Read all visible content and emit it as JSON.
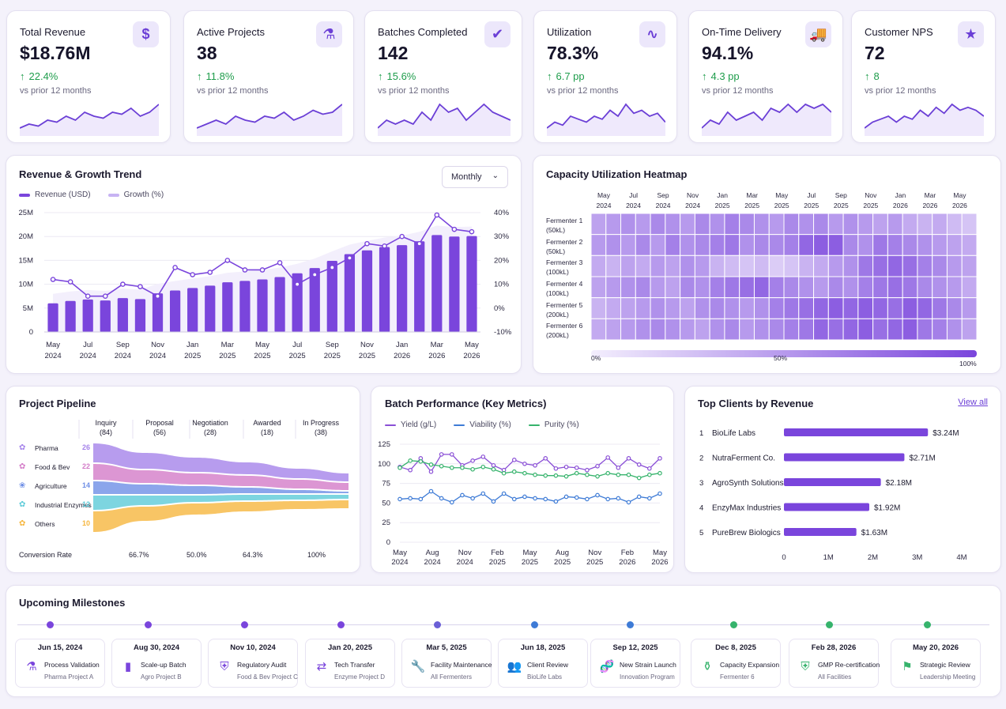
{
  "colors": {
    "accent": "#7a45dc",
    "accent_light": "#c7b3f3",
    "positive": "#1f9d4c",
    "teal": "#2ab8c9",
    "blue": "#3e7bd6",
    "green": "#36b36c",
    "orange": "#f5b340",
    "pink": "#d675c8"
  },
  "kpis": [
    {
      "title": "Total Revenue",
      "value": "$18.76M",
      "arrow": "↑",
      "delta": "22.4%",
      "sub": "vs prior 12 months",
      "icon": "dollar-icon",
      "glyph": "$",
      "trend": [
        3,
        4,
        3.5,
        5,
        4.5,
        6,
        5,
        7,
        6,
        5.5,
        7,
        6.5,
        8,
        6,
        7,
        9
      ]
    },
    {
      "title": "Active Projects",
      "value": "38",
      "arrow": "↑",
      "delta": "11.8%",
      "sub": "vs prior 12 months",
      "icon": "flask-icon",
      "glyph": "⚗",
      "trend": [
        3,
        4,
        5,
        4,
        6,
        5,
        4.5,
        6,
        5.5,
        7,
        5,
        6,
        7.5,
        6.5,
        7,
        9
      ]
    },
    {
      "title": "Batches Completed",
      "value": "142",
      "arrow": "↑",
      "delta": "15.6%",
      "sub": "vs prior 12 months",
      "icon": "checkbox-icon",
      "glyph": "✔",
      "trend": [
        4,
        5,
        4.5,
        5,
        4.5,
        6,
        5,
        7,
        6,
        6.5,
        5,
        6,
        7,
        6,
        5.5,
        5
      ]
    },
    {
      "title": "Utilization",
      "value": "78.3%",
      "arrow": "↑",
      "delta": "6.7 pp",
      "sub": "vs prior 12 months",
      "icon": "pulse-icon",
      "glyph": "∿",
      "trend": [
        4,
        5,
        4.5,
        6,
        5.5,
        5,
        6,
        5.5,
        7,
        6,
        8,
        6.5,
        7,
        6,
        6.5,
        5
      ]
    },
    {
      "title": "On-Time Delivery",
      "value": "94.1%",
      "arrow": "↑",
      "delta": "4.3 pp",
      "sub": "vs prior 12 months",
      "icon": "truck-icon",
      "glyph": "🚚",
      "trend": [
        4,
        5,
        4.5,
        6,
        5,
        5.5,
        6,
        5,
        6.5,
        6,
        7,
        6,
        7,
        6.5,
        7,
        6
      ]
    },
    {
      "title": "Customer NPS",
      "value": "72",
      "arrow": "↑",
      "delta": "8",
      "sub": "vs prior 12 months",
      "icon": "star-icon",
      "glyph": "★",
      "trend": [
        3,
        4,
        4.5,
        5,
        4,
        5,
        4.5,
        6,
        5,
        6.5,
        5.5,
        7,
        6,
        6.5,
        6,
        5
      ]
    }
  ],
  "revenue_trend": {
    "title": "Revenue & Growth Trend",
    "select_value": "Monthly",
    "legend": [
      "Revenue (USD)",
      "Growth (%)"
    ]
  },
  "heatmap": {
    "title": "Capacity Utilization Heatmap",
    "col_labels": [
      [
        "May",
        "2024"
      ],
      [
        "Jul",
        "2024"
      ],
      [
        "Sep",
        "2024"
      ],
      [
        "Nov",
        "2024"
      ],
      [
        "Jan",
        "2025"
      ],
      [
        "Mar",
        "2025"
      ],
      [
        "May",
        "2025"
      ],
      [
        "Jul",
        "2025"
      ],
      [
        "Sep",
        "2025"
      ],
      [
        "Nov",
        "2025"
      ],
      [
        "Jan",
        "2026"
      ],
      [
        "Mar",
        "2026"
      ],
      [
        "May",
        "2026"
      ]
    ],
    "row_labels": [
      [
        "Fermenter 1",
        "(50kL)"
      ],
      [
        "Fermenter 2",
        "(50kL)"
      ],
      [
        "Fermenter 3",
        "(100kL)"
      ],
      [
        "Fermenter 4",
        "(100kL)"
      ],
      [
        "Fermenter 5",
        "(200kL)"
      ],
      [
        "Fermenter 6",
        "(200kL)"
      ]
    ],
    "scale_labels": [
      "0%",
      "50%",
      "100%"
    ],
    "values": [
      [
        0.45,
        0.5,
        0.55,
        0.5,
        0.6,
        0.55,
        0.5,
        0.6,
        0.55,
        0.65,
        0.6,
        0.55,
        0.5,
        0.6,
        0.55,
        0.6,
        0.5,
        0.55,
        0.5,
        0.45,
        0.5,
        0.4,
        0.35,
        0.4,
        0.3,
        0.25
      ],
      [
        0.5,
        0.55,
        0.5,
        0.6,
        0.5,
        0.65,
        0.55,
        0.6,
        0.65,
        0.7,
        0.55,
        0.6,
        0.6,
        0.65,
        0.8,
        0.85,
        0.85,
        0.6,
        0.55,
        0.7,
        0.65,
        0.6,
        0.55,
        0.5,
        0.45,
        0.4
      ],
      [
        0.4,
        0.35,
        0.45,
        0.4,
        0.5,
        0.45,
        0.55,
        0.5,
        0.35,
        0.3,
        0.25,
        0.3,
        0.2,
        0.25,
        0.35,
        0.4,
        0.5,
        0.55,
        0.7,
        0.75,
        0.8,
        0.75,
        0.65,
        0.6,
        0.5,
        0.45
      ],
      [
        0.45,
        0.5,
        0.55,
        0.6,
        0.5,
        0.45,
        0.6,
        0.55,
        0.65,
        0.7,
        0.75,
        0.8,
        0.65,
        0.6,
        0.55,
        0.5,
        0.6,
        0.55,
        0.65,
        0.7,
        0.75,
        0.7,
        0.6,
        0.55,
        0.5,
        0.4
      ],
      [
        0.35,
        0.4,
        0.45,
        0.5,
        0.55,
        0.5,
        0.45,
        0.55,
        0.6,
        0.55,
        0.5,
        0.55,
        0.65,
        0.7,
        0.75,
        0.8,
        0.85,
        0.8,
        0.85,
        0.8,
        0.75,
        0.85,
        0.8,
        0.7,
        0.6,
        0.5
      ],
      [
        0.4,
        0.45,
        0.5,
        0.55,
        0.6,
        0.55,
        0.5,
        0.45,
        0.55,
        0.6,
        0.5,
        0.55,
        0.6,
        0.65,
        0.7,
        0.8,
        0.75,
        0.8,
        0.85,
        0.75,
        0.8,
        0.85,
        0.7,
        0.65,
        0.55,
        0.45
      ]
    ]
  },
  "pipeline": {
    "title": "Project Pipeline",
    "stages": [
      [
        "Inquiry",
        "(84)"
      ],
      [
        "Proposal",
        "(56)"
      ],
      [
        "Negotiation",
        "(28)"
      ],
      [
        "Awarded",
        "(18)"
      ],
      [
        "In Progress",
        "(38)"
      ]
    ],
    "segments": [
      {
        "label": "Pharma",
        "count": "26",
        "color": "#a583ea",
        "icon": "pharma-icon",
        "glyph": "✿"
      },
      {
        "label": "Food & Bev",
        "count": "22",
        "color": "#d37cc8",
        "icon": "food-icon",
        "glyph": "✿"
      },
      {
        "label": "Agriculture",
        "count": "14",
        "color": "#6e8ee6",
        "icon": "leaf-icon",
        "glyph": "❀"
      },
      {
        "label": "Industrial Enzymes",
        "count": "12",
        "color": "#5ccad8",
        "icon": "enzyme-icon",
        "glyph": "✿"
      },
      {
        "label": "Others",
        "count": "10",
        "color": "#f6b63e",
        "icon": "others-icon",
        "glyph": "✿"
      }
    ],
    "conversion_label": "Conversion Rate",
    "conversion_values": [
      "66.7%",
      "50.0%",
      "64.3%",
      "100%"
    ]
  },
  "batch": {
    "title": "Batch Performance (Key Metrics)",
    "legend": [
      "Yield (g/L)",
      "Viability (%)",
      "Purity (%)"
    ]
  },
  "clients": {
    "title": "Top Clients by Revenue",
    "view_all": "View all",
    "rows": [
      {
        "rank": "1",
        "name": "BioLife Labs",
        "value": "$3.24M"
      },
      {
        "rank": "2",
        "name": "NutraFerment Co.",
        "value": "$2.71M"
      },
      {
        "rank": "3",
        "name": "AgroSynth Solutions",
        "value": "$2.18M"
      },
      {
        "rank": "4",
        "name": "EnzyMax Industries",
        "value": "$1.92M"
      },
      {
        "rank": "5",
        "name": "PureBrew Biologics",
        "value": "$1.63M"
      }
    ]
  },
  "milestones": {
    "title": "Upcoming Milestones",
    "items": [
      {
        "date": "Jun 15, 2024",
        "title": "Process Validation",
        "sub": "Pharma Project A",
        "icon": "flask-icon",
        "glyph": "⚗",
        "color": "#7a45dc"
      },
      {
        "date": "Aug 30, 2024",
        "title": "Scale-up Batch",
        "sub": "Agro Project B",
        "icon": "bar-chart-icon",
        "glyph": "▮",
        "color": "#7a45dc"
      },
      {
        "date": "Nov 10, 2024",
        "title": "Regulatory Audit",
        "sub": "Food & Bev Project C",
        "icon": "shield-icon",
        "glyph": "⛨",
        "color": "#7a45dc"
      },
      {
        "date": "Jan 20, 2025",
        "title": "Tech Transfer",
        "sub": "Enzyme Project D",
        "icon": "transfer-icon",
        "glyph": "⇄",
        "color": "#7a45dc"
      },
      {
        "date": "Mar 5, 2025",
        "title": "Facility Maintenance",
        "sub": "All Fermenters",
        "icon": "wrench-icon",
        "glyph": "🔧",
        "color": "#6a5fd6"
      },
      {
        "date": "Jun 18, 2025",
        "title": "Client Review",
        "sub": "BioLife Labs",
        "icon": "users-icon",
        "glyph": "👥",
        "color": "#3e7bd6"
      },
      {
        "date": "Sep 12, 2025",
        "title": "New Strain Launch",
        "sub": "Innovation Program",
        "icon": "dna-icon",
        "glyph": "🧬",
        "color": "#3e7bd6"
      },
      {
        "date": "Dec 8, 2025",
        "title": "Capacity Expansion",
        "sub": "Fermenter 6",
        "icon": "tank-icon",
        "glyph": "⚱",
        "color": "#36b36c"
      },
      {
        "date": "Feb 28, 2026",
        "title": "GMP Re-certification",
        "sub": "All Facilities",
        "icon": "shield-check-icon",
        "glyph": "⛨",
        "color": "#36b36c"
      },
      {
        "date": "May 20, 2026",
        "title": "Strategic Review",
        "sub": "Leadership Meeting",
        "icon": "flag-icon",
        "glyph": "⚑",
        "color": "#36b36c"
      }
    ]
  },
  "chart_data": [
    {
      "type": "bar",
      "title": "Revenue & Growth Trend",
      "categories": [
        "May 2024",
        "Jun 2024",
        "Jul 2024",
        "Aug 2024",
        "Sep 2024",
        "Oct 2024",
        "Nov 2024",
        "Dec 2024",
        "Jan 2025",
        "Feb 2025",
        "Mar 2025",
        "Apr 2025",
        "May 2025",
        "Jun 2025",
        "Jul 2025",
        "Aug 2025",
        "Sep 2025",
        "Oct 2025",
        "Nov 2025",
        "Dec 2025",
        "Jan 2026",
        "Feb 2026",
        "Mar 2026",
        "Apr 2026",
        "May 2026"
      ],
      "x_tick_labels": [
        [
          "May",
          "2024"
        ],
        [
          "Jul",
          "2024"
        ],
        [
          "Sep",
          "2024"
        ],
        [
          "Nov",
          "2024"
        ],
        [
          "Jan",
          "2025"
        ],
        [
          "Mar",
          "2025"
        ],
        [
          "May",
          "2025"
        ],
        [
          "Jul",
          "2025"
        ],
        [
          "Sep",
          "2025"
        ],
        [
          "Nov",
          "2025"
        ],
        [
          "Jan",
          "2026"
        ],
        [
          "Mar",
          "2026"
        ],
        [
          "May",
          "2026"
        ]
      ],
      "series": [
        {
          "name": "Revenue (USD)",
          "axis": "left",
          "values": [
            6.0,
            6.5,
            6.8,
            6.6,
            7.1,
            6.9,
            8.1,
            8.7,
            9.2,
            9.7,
            10.4,
            10.7,
            11.0,
            11.5,
            12.3,
            13.4,
            14.9,
            16.3,
            17.1,
            17.8,
            18.2,
            19.0,
            20.3,
            20.0,
            20.1
          ]
        },
        {
          "name": "Growth (%)",
          "axis": "right",
          "values": [
            12,
            11,
            5,
            5,
            10,
            9,
            5,
            17,
            14,
            15,
            20,
            16,
            16,
            19,
            10,
            14,
            17,
            21,
            27,
            26,
            30,
            27,
            39,
            33,
            32
          ]
        }
      ],
      "ylim_left": [
        0,
        25
      ],
      "ylim_right": [
        -10,
        40
      ],
      "y_left_ticks": [
        "0",
        "5M",
        "10M",
        "15M",
        "20M",
        "25M"
      ],
      "y_right_ticks": [
        "-10%",
        "0%",
        "10%",
        "20%",
        "30%",
        "40%"
      ]
    },
    {
      "type": "line",
      "title": "Batch Performance (Key Metrics)",
      "x_tick_labels": [
        [
          "May",
          "2024"
        ],
        [
          "Aug",
          "2024"
        ],
        [
          "Nov",
          "2024"
        ],
        [
          "Feb",
          "2025"
        ],
        [
          "May",
          "2025"
        ],
        [
          "Aug",
          "2025"
        ],
        [
          "Nov",
          "2025"
        ],
        [
          "Feb",
          "2026"
        ],
        [
          "May",
          "2026"
        ]
      ],
      "series": [
        {
          "name": "Yield (g/L)",
          "values": [
            96,
            92,
            107,
            90,
            112,
            112,
            98,
            104,
            109,
            98,
            92,
            105,
            100,
            98,
            107,
            94,
            96,
            95,
            92,
            97,
            108,
            95,
            107,
            99,
            94,
            107
          ],
          "color": "#8a4fd6"
        },
        {
          "name": "Viability (%)",
          "values": [
            55,
            56,
            55,
            65,
            56,
            51,
            60,
            56,
            62,
            52,
            62,
            55,
            58,
            56,
            55,
            52,
            58,
            57,
            55,
            60,
            55,
            56,
            51,
            58,
            56,
            62
          ],
          "color": "#3e7bd6"
        },
        {
          "name": "Purity (%)",
          "values": [
            95,
            104,
            103,
            99,
            97,
            95,
            95,
            93,
            96,
            93,
            88,
            90,
            88,
            86,
            85,
            85,
            84,
            88,
            86,
            84,
            88,
            86,
            86,
            82,
            86,
            88
          ],
          "color": "#36b36c"
        }
      ],
      "ylim": [
        0,
        125
      ],
      "y_ticks": [
        "0",
        "25",
        "50",
        "75",
        "100",
        "125"
      ]
    },
    {
      "type": "bar",
      "title": "Top Clients by Revenue",
      "categories": [
        "BioLife Labs",
        "NutraFerment Co.",
        "AgroSynth Solutions",
        "EnzyMax Industries",
        "PureBrew Biologics"
      ],
      "values": [
        3.24,
        2.71,
        2.18,
        1.92,
        1.63
      ],
      "xlim": [
        0,
        4
      ],
      "x_ticks": [
        "0",
        "1M",
        "2M",
        "3M",
        "4M"
      ]
    },
    {
      "type": "heatmap",
      "title": "Capacity Utilization Heatmap"
    }
  ]
}
